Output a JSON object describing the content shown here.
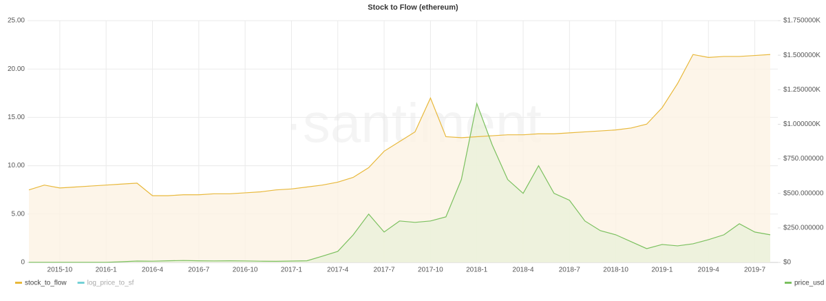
{
  "chart_data": {
    "type": "line",
    "title": "Stock to Flow (ethereum)",
    "watermark": "·santiment",
    "x": [
      null,
      null,
      "2015-10",
      null,
      null,
      "2016-1",
      null,
      null,
      "2016-4",
      null,
      null,
      "2016-7",
      null,
      null,
      "2016-10",
      null,
      null,
      "2017-1",
      null,
      null,
      "2017-4",
      null,
      null,
      "2017-7",
      null,
      null,
      "2017-10",
      null,
      null,
      "2018-1",
      null,
      null,
      "2018-4",
      null,
      null,
      "2018-7",
      null,
      null,
      "2018-10",
      null,
      null,
      "2019-1",
      null,
      null,
      "2019-4",
      null,
      null,
      "2019-7",
      null
    ],
    "series": [
      {
        "name": "stock_to_flow",
        "color": "#e8b83a",
        "fill": "#fdf3e3",
        "axis": "y",
        "values": [
          7.5,
          8,
          7.7,
          7.8,
          7.9,
          8.0,
          8.1,
          8.2,
          6.9,
          6.9,
          7.0,
          7.0,
          7.1,
          7.1,
          7.2,
          7.3,
          7.5,
          7.6,
          7.8,
          8.0,
          8.3,
          8.8,
          9.8,
          11.5,
          12.5,
          13.5,
          17.0,
          13.0,
          12.9,
          13.0,
          13.1,
          13.2,
          13.2,
          13.3,
          13.3,
          13.4,
          13.5,
          13.6,
          13.7,
          13.9,
          14.3,
          16.0,
          18.5,
          21.5,
          21.2,
          21.3,
          21.3,
          21.4,
          21.5
        ]
      },
      {
        "name": "log_price_to_sf",
        "color": "#72d0d6",
        "hidden": true
      },
      {
        "name": "price_usd",
        "color": "#7ac05e",
        "fill": "#eaf1da",
        "axis": "y2",
        "values": [
          1,
          1,
          1,
          1,
          1,
          1,
          5,
          10,
          9,
          12,
          14,
          12,
          11,
          12,
          11,
          9,
          8,
          10,
          12,
          45,
          80,
          200,
          350,
          220,
          300,
          290,
          300,
          330,
          600,
          1150,
          850,
          600,
          500,
          700,
          500,
          450,
          300,
          230,
          200,
          150,
          100,
          130,
          120,
          135,
          165,
          200,
          280,
          220,
          200
        ]
      }
    ],
    "ylim": [
      0,
      25
    ],
    "yticks": [
      {
        "value": 0,
        "label": "0"
      },
      {
        "value": 5,
        "label": "5.00"
      },
      {
        "value": 10,
        "label": "10.00"
      },
      {
        "value": 15,
        "label": "15.00"
      },
      {
        "value": 20,
        "label": "20.00"
      },
      {
        "value": 25,
        "label": "25.00"
      }
    ],
    "y2lim": [
      0,
      1750
    ],
    "y2ticks": [
      {
        "value": 0,
        "label": "$0"
      },
      {
        "value": 250,
        "label": "$250.000000"
      },
      {
        "value": 500,
        "label": "$500.000000"
      },
      {
        "value": 750,
        "label": "$750.000000"
      },
      {
        "value": 1000,
        "label": "$1.000000K"
      },
      {
        "value": 1250,
        "label": "$1.250000K"
      },
      {
        "value": 1500,
        "label": "$1.500000K"
      },
      {
        "value": 1750,
        "label": "$1.750000K"
      }
    ],
    "grid": true
  }
}
